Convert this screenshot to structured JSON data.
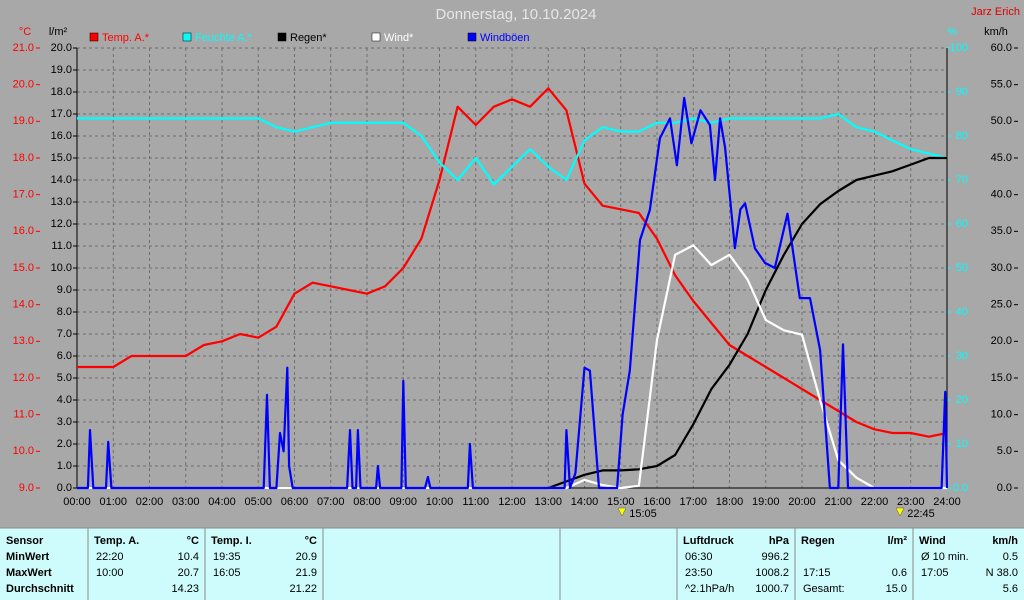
{
  "chart_data": {
    "type": "line",
    "title": "Donnerstag, 10.10.2024",
    "author": "Jarz Erich",
    "grid": true,
    "xlim": [
      0,
      24
    ],
    "xticks": [
      {
        "value": 0,
        "label": "00:00"
      },
      {
        "value": 1,
        "label": "01:00"
      },
      {
        "value": 2,
        "label": "02:00"
      },
      {
        "value": 3,
        "label": "03:00"
      },
      {
        "value": 4,
        "label": "04:00"
      },
      {
        "value": 5,
        "label": "05:00"
      },
      {
        "value": 6,
        "label": "06:00"
      },
      {
        "value": 7,
        "label": "07:00"
      },
      {
        "value": 8,
        "label": "08:00"
      },
      {
        "value": 9,
        "label": "09:00"
      },
      {
        "value": 10,
        "label": "10:00"
      },
      {
        "value": 11,
        "label": "11:00"
      },
      {
        "value": 12,
        "label": "12:00"
      },
      {
        "value": 13,
        "label": "13:00"
      },
      {
        "value": 14,
        "label": "14:00"
      },
      {
        "value": 15,
        "label": "15:00"
      },
      {
        "value": 16,
        "label": "16:00"
      },
      {
        "value": 17,
        "label": "17:00"
      },
      {
        "value": 18,
        "label": "18:00"
      },
      {
        "value": 19,
        "label": "19:00"
      },
      {
        "value": 20,
        "label": "20:00"
      },
      {
        "value": 21,
        "label": "21:00"
      },
      {
        "value": 22,
        "label": "22:00"
      },
      {
        "value": 23,
        "label": "23:00"
      },
      {
        "value": 24,
        "label": "24:00"
      }
    ],
    "axes": {
      "y": {
        "label": "°C",
        "color": "#ff0000",
        "lim": [
          9,
          21
        ],
        "ticks": [
          {
            "value": 9,
            "label": "9.0"
          },
          {
            "value": 10,
            "label": "10.0"
          },
          {
            "value": 11,
            "label": "11.0"
          },
          {
            "value": 12,
            "label": "12.0"
          },
          {
            "value": 13,
            "label": "13.0"
          },
          {
            "value": 14,
            "label": "14.0"
          },
          {
            "value": 15,
            "label": "15.0"
          },
          {
            "value": 16,
            "label": "16.0"
          },
          {
            "value": 17,
            "label": "17.0"
          },
          {
            "value": 18,
            "label": "18.0"
          },
          {
            "value": 19,
            "label": "19.0"
          },
          {
            "value": 20,
            "label": "20.0"
          },
          {
            "value": 21,
            "label": "21.0"
          }
        ]
      },
      "y2": {
        "label": "l/m²",
        "color": "#000000",
        "lim": [
          0,
          20
        ],
        "grid": true,
        "ticks": [
          {
            "value": 0,
            "label": "0.0"
          },
          {
            "value": 1,
            "label": "1.0"
          },
          {
            "value": 2,
            "label": "2.0"
          },
          {
            "value": 3,
            "label": "3.0"
          },
          {
            "value": 4,
            "label": "4.0"
          },
          {
            "value": 5,
            "label": "5.0"
          },
          {
            "value": 6,
            "label": "6.0"
          },
          {
            "value": 7,
            "label": "7.0"
          },
          {
            "value": 8,
            "label": "8.0"
          },
          {
            "value": 9,
            "label": "9.0"
          },
          {
            "value": 10,
            "label": "10.0"
          },
          {
            "value": 11,
            "label": "11.0"
          },
          {
            "value": 12,
            "label": "12.0"
          },
          {
            "value": 13,
            "label": "13.0"
          },
          {
            "value": 14,
            "label": "14.0"
          },
          {
            "value": 15,
            "label": "15.0"
          },
          {
            "value": 16,
            "label": "16.0"
          },
          {
            "value": 17,
            "label": "17.0"
          },
          {
            "value": 18,
            "label": "18.0"
          },
          {
            "value": 19,
            "label": "19.0"
          },
          {
            "value": 20,
            "label": "20.0"
          }
        ]
      },
      "y3": {
        "label": "%",
        "color": "#00ffff",
        "lim": [
          0,
          100
        ],
        "ticks": [
          {
            "value": 0,
            "label": "0.0"
          },
          10,
          20,
          30,
          40,
          50,
          60,
          70,
          80,
          90,
          100
        ]
      },
      "y4": {
        "label": "km/h",
        "color": "#000000",
        "lim": [
          0,
          60
        ],
        "ticks": [
          {
            "value": 0,
            "label": "0.0"
          },
          {
            "value": 5,
            "label": "5.0"
          },
          {
            "value": 10,
            "label": "10.0"
          },
          {
            "value": 15,
            "label": "15.0"
          },
          {
            "value": 20,
            "label": "20.0"
          },
          {
            "value": 25,
            "label": "25.0"
          },
          {
            "value": 30,
            "label": "30.0"
          },
          {
            "value": 35,
            "label": "35.0"
          },
          {
            "value": 40,
            "label": "40.0"
          },
          {
            "value": 45,
            "label": "45.0"
          },
          {
            "value": 50,
            "label": "50.0"
          },
          {
            "value": 55,
            "label": "55.0"
          },
          {
            "value": 60,
            "label": "60.0"
          }
        ]
      }
    },
    "x": [
      0,
      0.5,
      1,
      1.5,
      2,
      2.5,
      3,
      3.5,
      4,
      4.5,
      5,
      5.5,
      6,
      6.5,
      7,
      7.5,
      8,
      8.5,
      9,
      9.5,
      10,
      10.5,
      11,
      11.5,
      12,
      12.5,
      13,
      13.5,
      14,
      14.5,
      15,
      15.5,
      16,
      16.5,
      17,
      17.5,
      18,
      18.5,
      19,
      19.5,
      20,
      20.5,
      21,
      21.5,
      22,
      22.5,
      23,
      23.5,
      24
    ],
    "series": [
      {
        "name": "Temp. A.*",
        "color": "#ff0000",
        "axis": "y",
        "values": [
          12.3,
          12.3,
          12.3,
          12.6,
          12.6,
          12.6,
          12.6,
          12.9,
          13.0,
          13.2,
          13.1,
          13.4,
          14.3,
          14.6,
          14.5,
          14.4,
          14.3,
          14.5,
          15.0,
          15.8,
          17.4,
          19.4,
          18.9,
          19.4,
          19.6,
          19.4,
          19.9,
          19.3,
          17.3,
          16.7,
          16.6,
          16.5,
          15.8,
          14.8,
          14.1,
          13.5,
          12.9,
          12.6,
          12.3,
          12.0,
          11.7,
          11.4,
          11.1,
          10.8,
          10.6,
          10.5,
          10.5,
          10.4,
          10.5
        ]
      },
      {
        "name": "Feuchte A.*",
        "color": "#00ffff",
        "axis": "y3",
        "values": [
          84,
          84,
          84,
          84,
          84,
          84,
          84,
          84,
          84,
          84,
          84,
          82,
          81,
          82,
          83,
          83,
          83,
          83,
          83,
          80,
          74,
          70,
          75,
          69,
          73,
          77,
          73,
          70,
          79,
          82,
          81,
          81,
          83,
          83,
          84,
          83,
          84,
          84,
          84,
          84,
          84,
          84,
          85,
          82,
          81,
          79,
          77,
          76,
          75
        ]
      },
      {
        "name": "Regen*",
        "color": "#000000",
        "axis": "y2",
        "values": [
          0,
          0,
          0,
          0,
          0,
          0,
          0,
          0,
          0,
          0,
          0,
          0,
          0,
          0,
          0,
          0,
          0,
          0,
          0,
          0,
          0,
          0,
          0,
          0,
          0,
          0,
          0,
          0.3,
          0.6,
          0.8,
          0.8,
          0.85,
          1.0,
          1.5,
          2.9,
          4.5,
          5.6,
          7.0,
          9.0,
          10.6,
          12.0,
          12.9,
          13.5,
          14.0,
          14.2,
          14.4,
          14.7,
          15.0,
          15.0
        ]
      },
      {
        "name": "Wind*",
        "color": "#ffffff",
        "axis": "y4",
        "values": [
          0,
          0,
          0,
          0,
          0,
          0,
          0,
          0,
          0,
          0,
          0,
          0,
          0,
          0,
          0,
          0,
          0,
          0,
          0,
          0,
          0,
          0,
          0,
          0,
          0,
          0,
          0,
          0,
          1.1,
          0.4,
          0,
          0.3,
          20.2,
          31.8,
          33.1,
          30.4,
          31.8,
          28.4,
          22.9,
          21.5,
          20.9,
          12.0,
          3.8,
          1.4,
          0,
          0,
          0,
          0,
          0
        ]
      },
      {
        "name": "Windböen",
        "color": "#0000ff",
        "axis": "y4",
        "x": [
          0,
          0.3,
          0.36,
          0.45,
          0.8,
          0.86,
          0.95,
          5.15,
          5.24,
          5.32,
          5.5,
          5.6,
          5.7,
          5.8,
          5.85,
          5.95,
          7.45,
          7.53,
          7.6,
          7.7,
          7.75,
          7.82,
          8.25,
          8.3,
          8.36,
          8.95,
          9.0,
          9.07,
          9.6,
          9.68,
          9.75,
          10.78,
          10.84,
          10.92,
          13.45,
          13.5,
          13.6,
          13.75,
          14.0,
          14.15,
          14.4,
          14.9,
          15.05,
          15.25,
          15.53,
          15.8,
          16.08,
          16.36,
          16.55,
          16.75,
          16.95,
          17.2,
          17.46,
          17.6,
          17.74,
          17.88,
          18.15,
          18.3,
          18.43,
          18.7,
          18.98,
          19.25,
          19.6,
          19.94,
          20.22,
          20.5,
          20.77,
          21.0,
          21.13,
          21.27,
          23.85,
          23.95,
          24
        ],
        "values": [
          0,
          0,
          7.9,
          0,
          0,
          6.3,
          0,
          0,
          12.7,
          0,
          0,
          7.5,
          5,
          16.4,
          3,
          0,
          0,
          7.9,
          0,
          0,
          7.9,
          0,
          0,
          3,
          0,
          0,
          14.6,
          0,
          0,
          1.5,
          0,
          0,
          6,
          0,
          0,
          7.9,
          0,
          2,
          16.4,
          16,
          0,
          0,
          10,
          16,
          33.8,
          37.9,
          47.7,
          50.4,
          44,
          53.2,
          47,
          51.5,
          49.5,
          42,
          50.4,
          46.4,
          32.7,
          38,
          38.8,
          32.7,
          30.7,
          30,
          37.4,
          25.9,
          25.9,
          18.8,
          0,
          0,
          19.6,
          0,
          0,
          13.1,
          0
        ]
      }
    ],
    "annotations": [
      "15:05",
      "22:45"
    ]
  },
  "table": {
    "row_labels": [
      "Sensor",
      "MinWert",
      "MaxWert",
      "Durchschnitt"
    ],
    "groups": [
      {
        "title": "Temp. A.",
        "unit": "°C",
        "rows": [
          [
            "22:20",
            "10.4"
          ],
          [
            "10:00",
            "20.7"
          ],
          [
            null,
            "14.23"
          ]
        ]
      },
      {
        "title": "Temp. I.",
        "unit": "°C",
        "rows": [
          [
            "19:35",
            "20.9"
          ],
          [
            "16:05",
            "21.9"
          ],
          [
            null,
            "21.22"
          ]
        ]
      },
      {
        "title": "Luftdruck",
        "unit": "hPa",
        "rows": [
          [
            "06:30",
            "996.2"
          ],
          [
            "23:50",
            "1008.2"
          ],
          [
            "^2.1hPa/h",
            "1000.7"
          ]
        ]
      },
      {
        "title": "Regen",
        "unit": "l/m²",
        "rows": [
          [
            null,
            null
          ],
          [
            "17:15",
            "0.6"
          ],
          [
            "Gesamt:",
            "15.0"
          ]
        ]
      },
      {
        "title": "Wind",
        "unit": "km/h",
        "rows": [
          [
            "Ø 10 min.",
            "0.5"
          ],
          [
            "17:05",
            "N 38.0"
          ],
          [
            null,
            "5.6"
          ]
        ]
      }
    ]
  }
}
